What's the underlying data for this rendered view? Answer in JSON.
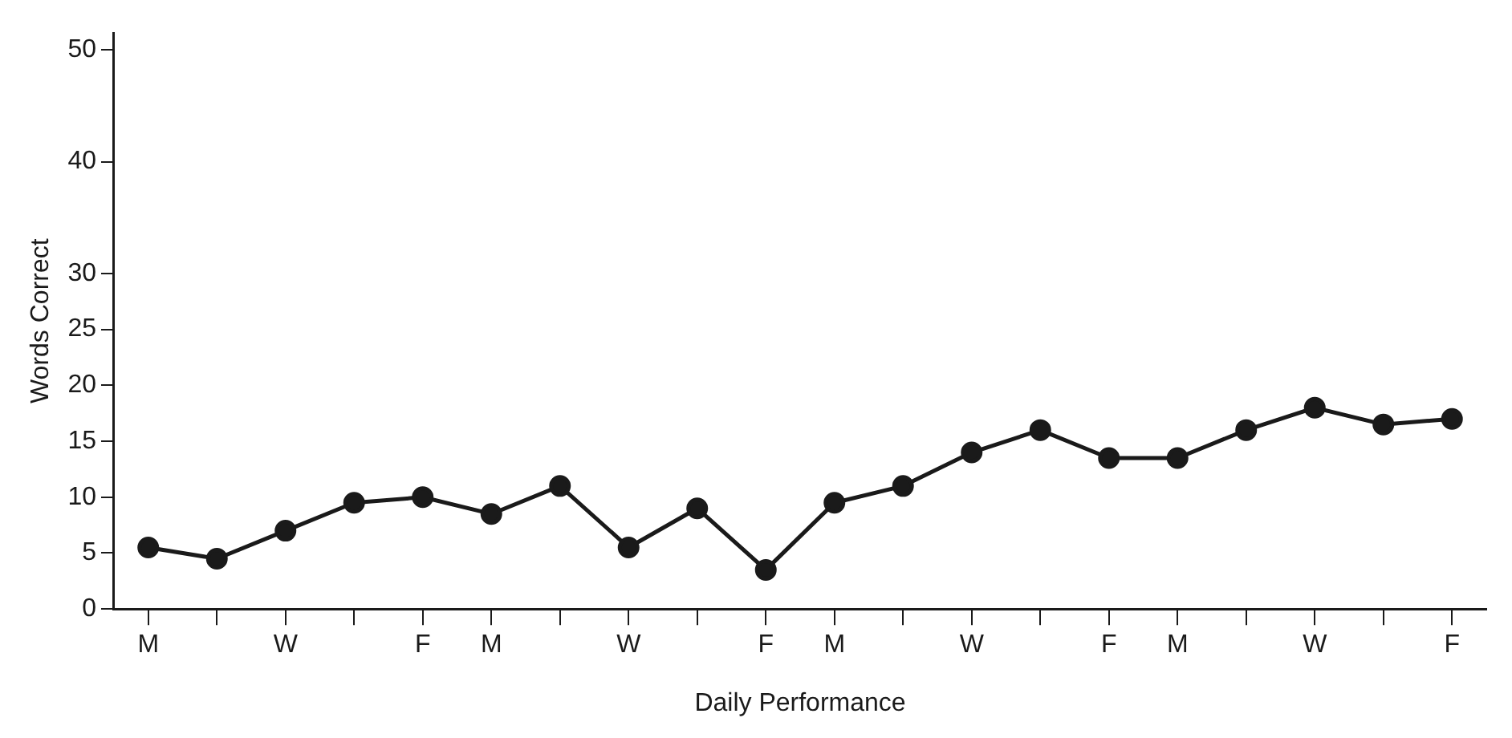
{
  "chart_data": {
    "type": "line",
    "xlabel": "Daily Performance",
    "ylabel": "Words Correct",
    "categories": [
      "M",
      null,
      "W",
      null,
      "F",
      "M",
      null,
      "W",
      null,
      "F",
      "M",
      null,
      "W",
      null,
      "F",
      "M",
      null,
      "W",
      null,
      "F"
    ],
    "series": [
      {
        "color": "#1a1a1a",
        "values": [
          5.5,
          4.5,
          7,
          9.5,
          10,
          8.5,
          11,
          5.5,
          9,
          3.5,
          9.5,
          11,
          14,
          16,
          13.5,
          13.5,
          16,
          18,
          16.5,
          17
        ]
      }
    ],
    "ylim": [
      0,
      51.5
    ],
    "yticks": [
      0,
      5,
      10,
      15,
      20,
      25,
      30,
      40,
      50
    ],
    "grid": false,
    "legend": false,
    "marker": "circle",
    "line_style": "solid"
  }
}
